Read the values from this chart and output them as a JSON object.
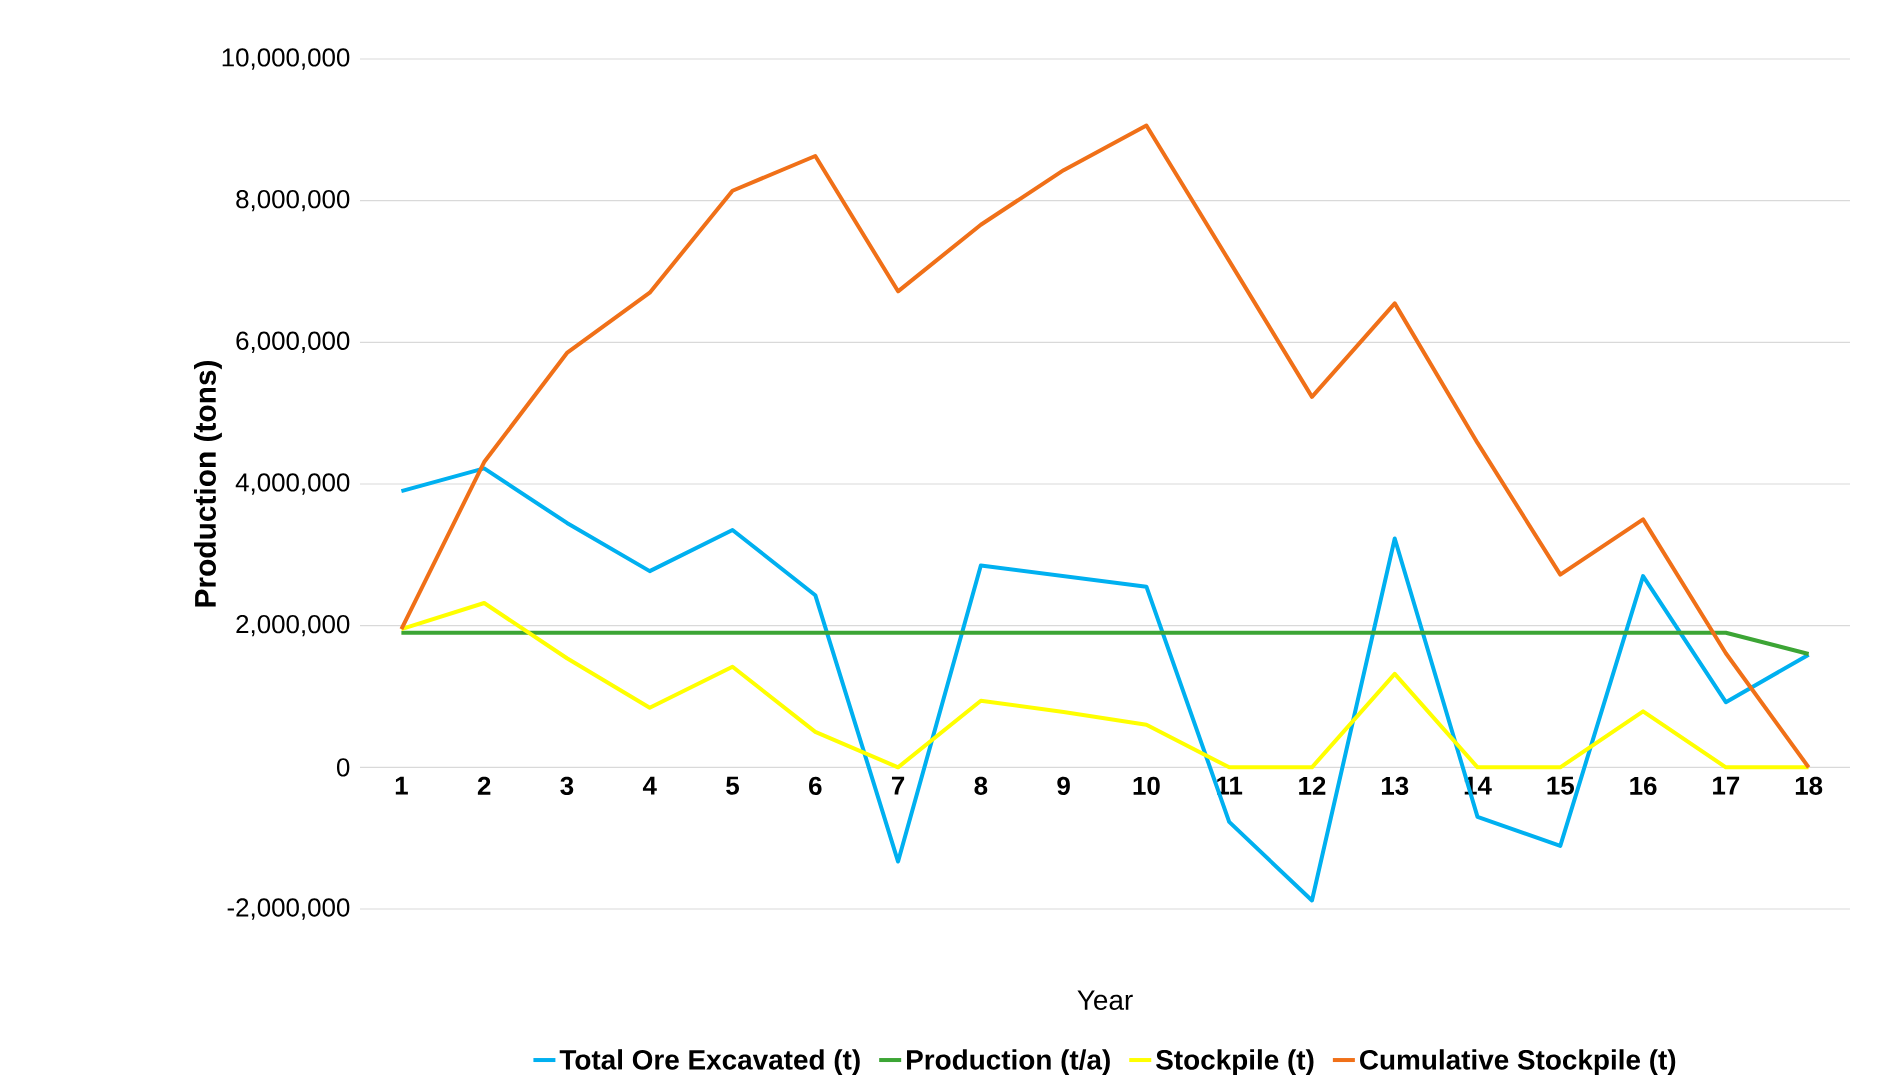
{
  "chart_data": {
    "type": "line",
    "xlabel": "Year",
    "ylabel": "Production (tons)",
    "categories": [
      "1",
      "2",
      "3",
      "4",
      "5",
      "6",
      "7",
      "8",
      "9",
      "10",
      "11",
      "12",
      "13",
      "14",
      "15",
      "16",
      "17",
      "18"
    ],
    "series": [
      {
        "name": "Total Ore Excavated (t)",
        "color": "#00b0f0",
        "values": [
          3900000,
          4220000,
          3450000,
          2770000,
          3350000,
          2430000,
          -1330000,
          2850000,
          2700000,
          2550000,
          -770000,
          -1880000,
          3230000,
          -700000,
          -1110000,
          2700000,
          920000,
          1590000
        ]
      },
      {
        "name": "Production (t/a)",
        "color": "#3ca535",
        "values": [
          1900000,
          1900000,
          1900000,
          1900000,
          1900000,
          1900000,
          1900000,
          1900000,
          1900000,
          1900000,
          1900000,
          1900000,
          1900000,
          1900000,
          1900000,
          1900000,
          1900000,
          1600000
        ]
      },
      {
        "name": "Stockpile (t)",
        "color": "#ffff00",
        "values": [
          1950000,
          2320000,
          1540000,
          840000,
          1420000,
          500000,
          0,
          940000,
          780000,
          600000,
          0,
          0,
          1320000,
          0,
          0,
          790000,
          0,
          0
        ]
      },
      {
        "name": "Cumulative Stockpile (t)",
        "color": "#f07018",
        "values": [
          1950000,
          4310000,
          5850000,
          6700000,
          8140000,
          8630000,
          6720000,
          7660000,
          8430000,
          9060000,
          7150000,
          5230000,
          6550000,
          4580000,
          2720000,
          3500000,
          1610000,
          0
        ]
      }
    ],
    "ylim": [
      -2000000,
      10000000
    ],
    "yticks": [
      {
        "value": -2000000,
        "label": "-2,000,000"
      },
      {
        "value": 0,
        "label": "0"
      },
      {
        "value": 2000000,
        "label": "2,000,000"
      },
      {
        "value": 4000000,
        "label": "4,000,000"
      },
      {
        "value": 6000000,
        "label": "6,000,000"
      },
      {
        "value": 8000000,
        "label": "8,000,000"
      },
      {
        "value": 10000000,
        "label": "10,000,000"
      }
    ],
    "grid": "y",
    "legend": "bottom",
    "marker": "none",
    "line_style": "solid"
  }
}
